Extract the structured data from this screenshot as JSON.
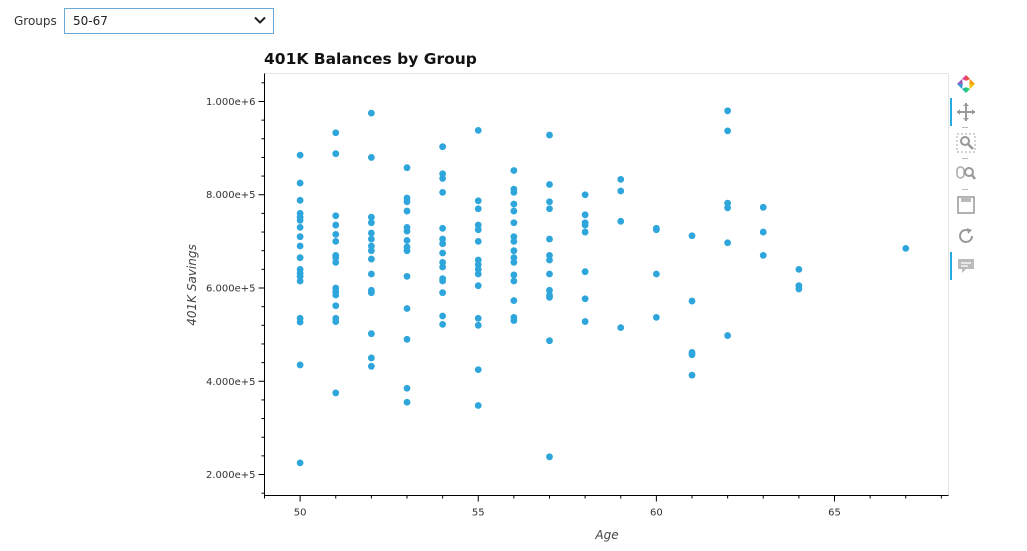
{
  "controls": {
    "groups_label": "Groups",
    "groups_value": "50-67"
  },
  "toolbar": {
    "tools": [
      "bokeh-logo",
      "pan-tool",
      "box-zoom-tool",
      "wheel-zoom-tool",
      "save-tool",
      "reset-tool",
      "hover-tool"
    ],
    "active": [
      "pan-tool",
      "hover-tool"
    ]
  },
  "colors": {
    "points": "#2ea6dc",
    "accent": "#26aae1"
  },
  "chart_data": {
    "type": "scatter",
    "title": "401K Balances by Group",
    "xlabel": "Age",
    "ylabel": "401K Savings",
    "xlim": [
      49,
      68.2
    ],
    "ylim": [
      155000,
      1060000
    ],
    "xticks": [
      50,
      55,
      60,
      65
    ],
    "yticks": [
      200000,
      400000,
      600000,
      800000,
      1000000
    ],
    "ytick_labels": [
      "2.000e+5",
      "4.000e+5",
      "6.000e+5",
      "8.000e+5",
      "1.000e+6"
    ],
    "grid": false,
    "points": [
      [
        50,
        885000
      ],
      [
        50,
        825000
      ],
      [
        50,
        788000
      ],
      [
        50,
        760000
      ],
      [
        50,
        752000
      ],
      [
        50,
        745000
      ],
      [
        50,
        730000
      ],
      [
        50,
        710000
      ],
      [
        50,
        690000
      ],
      [
        50,
        665000
      ],
      [
        50,
        640000
      ],
      [
        50,
        632000
      ],
      [
        50,
        625000
      ],
      [
        50,
        615000
      ],
      [
        50,
        535000
      ],
      [
        50,
        527000
      ],
      [
        50,
        435000
      ],
      [
        50,
        225000
      ],
      [
        51,
        933000
      ],
      [
        51,
        888000
      ],
      [
        51,
        755000
      ],
      [
        51,
        735000
      ],
      [
        51,
        715000
      ],
      [
        51,
        700000
      ],
      [
        51,
        670000
      ],
      [
        51,
        665000
      ],
      [
        51,
        655000
      ],
      [
        51,
        600000
      ],
      [
        51,
        592000
      ],
      [
        51,
        585000
      ],
      [
        51,
        562000
      ],
      [
        51,
        535000
      ],
      [
        51,
        528000
      ],
      [
        51,
        375000
      ],
      [
        52,
        975000
      ],
      [
        52,
        880000
      ],
      [
        52,
        752000
      ],
      [
        52,
        740000
      ],
      [
        52,
        718000
      ],
      [
        52,
        705000
      ],
      [
        52,
        690000
      ],
      [
        52,
        680000
      ],
      [
        52,
        662000
      ],
      [
        52,
        630000
      ],
      [
        52,
        595000
      ],
      [
        52,
        590000
      ],
      [
        52,
        502000
      ],
      [
        52,
        450000
      ],
      [
        52,
        432000
      ],
      [
        53,
        858000
      ],
      [
        53,
        793000
      ],
      [
        53,
        785000
      ],
      [
        53,
        765000
      ],
      [
        53,
        730000
      ],
      [
        53,
        722000
      ],
      [
        53,
        702000
      ],
      [
        53,
        688000
      ],
      [
        53,
        680000
      ],
      [
        53,
        625000
      ],
      [
        53,
        556000
      ],
      [
        53,
        490000
      ],
      [
        53,
        385000
      ],
      [
        53,
        355000
      ],
      [
        54,
        903000
      ],
      [
        54,
        845000
      ],
      [
        54,
        835000
      ],
      [
        54,
        805000
      ],
      [
        54,
        728000
      ],
      [
        54,
        705000
      ],
      [
        54,
        695000
      ],
      [
        54,
        675000
      ],
      [
        54,
        655000
      ],
      [
        54,
        645000
      ],
      [
        54,
        620000
      ],
      [
        54,
        615000
      ],
      [
        54,
        590000
      ],
      [
        54,
        540000
      ],
      [
        54,
        522000
      ],
      [
        55,
        938000
      ],
      [
        55,
        787000
      ],
      [
        55,
        770000
      ],
      [
        55,
        735000
      ],
      [
        55,
        725000
      ],
      [
        55,
        700000
      ],
      [
        55,
        660000
      ],
      [
        55,
        650000
      ],
      [
        55,
        640000
      ],
      [
        55,
        630000
      ],
      [
        55,
        605000
      ],
      [
        55,
        535000
      ],
      [
        55,
        520000
      ],
      [
        55,
        425000
      ],
      [
        55,
        348000
      ],
      [
        56,
        852000
      ],
      [
        56,
        812000
      ],
      [
        56,
        805000
      ],
      [
        56,
        780000
      ],
      [
        56,
        765000
      ],
      [
        56,
        740000
      ],
      [
        56,
        710000
      ],
      [
        56,
        700000
      ],
      [
        56,
        680000
      ],
      [
        56,
        665000
      ],
      [
        56,
        655000
      ],
      [
        56,
        628000
      ],
      [
        56,
        615000
      ],
      [
        56,
        573000
      ],
      [
        56,
        537000
      ],
      [
        56,
        530000
      ],
      [
        57,
        928000
      ],
      [
        57,
        822000
      ],
      [
        57,
        785000
      ],
      [
        57,
        770000
      ],
      [
        57,
        705000
      ],
      [
        57,
        670000
      ],
      [
        57,
        660000
      ],
      [
        57,
        630000
      ],
      [
        57,
        595000
      ],
      [
        57,
        585000
      ],
      [
        57,
        580000
      ],
      [
        57,
        487000
      ],
      [
        57,
        238000
      ],
      [
        58,
        800000
      ],
      [
        58,
        757000
      ],
      [
        58,
        740000
      ],
      [
        58,
        735000
      ],
      [
        58,
        720000
      ],
      [
        58,
        635000
      ],
      [
        58,
        577000
      ],
      [
        58,
        528000
      ],
      [
        59,
        833000
      ],
      [
        59,
        808000
      ],
      [
        59,
        743000
      ],
      [
        59,
        515000
      ],
      [
        60,
        728000
      ],
      [
        60,
        725000
      ],
      [
        60,
        630000
      ],
      [
        60,
        537000
      ],
      [
        61,
        712000
      ],
      [
        61,
        572000
      ],
      [
        61,
        462000
      ],
      [
        61,
        457000
      ],
      [
        61,
        413000
      ],
      [
        62,
        980000
      ],
      [
        62,
        937000
      ],
      [
        62,
        782000
      ],
      [
        62,
        772000
      ],
      [
        62,
        697000
      ],
      [
        62,
        498000
      ],
      [
        63,
        773000
      ],
      [
        63,
        720000
      ],
      [
        63,
        670000
      ],
      [
        64,
        640000
      ],
      [
        64,
        605000
      ],
      [
        64,
        598000
      ],
      [
        67,
        685000
      ]
    ]
  }
}
